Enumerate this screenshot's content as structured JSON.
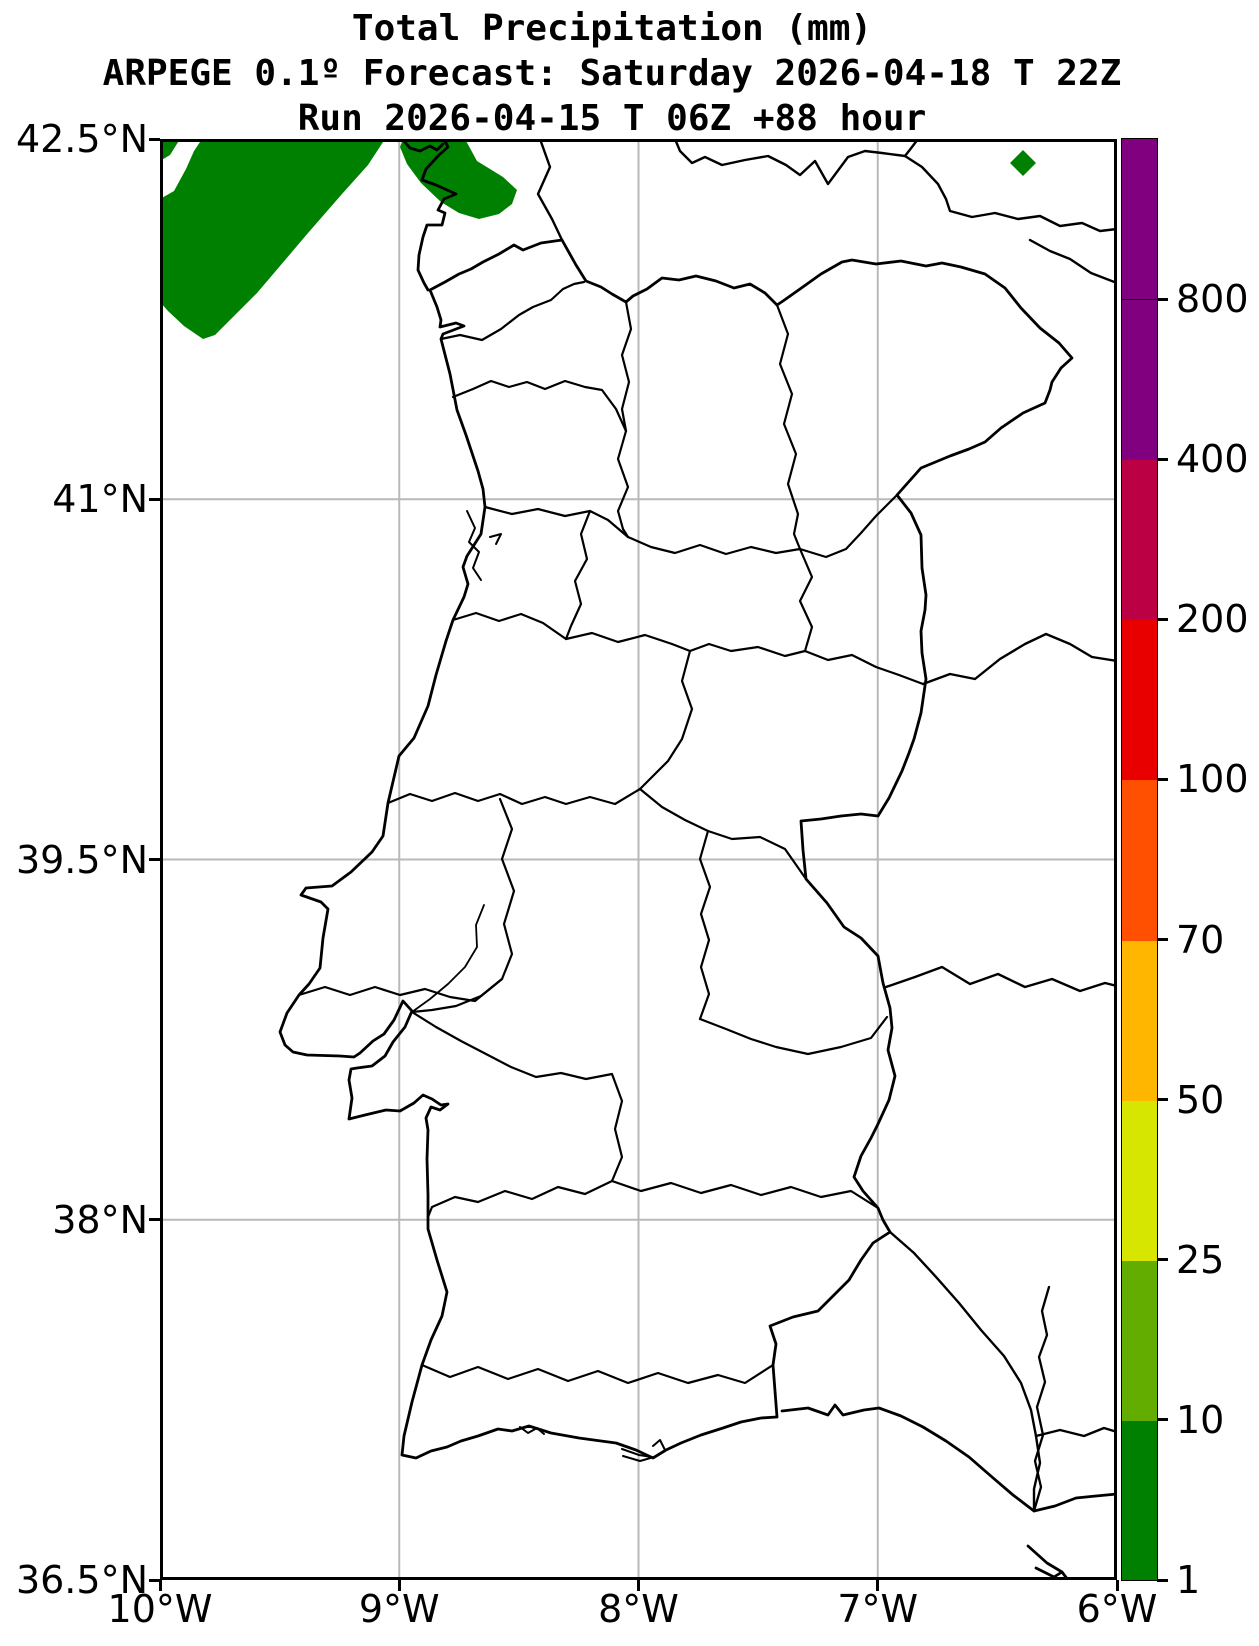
{
  "title": {
    "line1": "Total Precipitation (mm)",
    "line2": "ARPEGE 0.1º Forecast: Saturday 2026-04-18 T 22Z",
    "line3": "Run 2026-04-15 T 06Z +88 hour"
  },
  "axes": {
    "lat_ticks": [
      {
        "label": "42.5°N",
        "value": 42.5
      },
      {
        "label": "41°N",
        "value": 41
      },
      {
        "label": "39.5°N",
        "value": 39.5
      },
      {
        "label": "38°N",
        "value": 38
      },
      {
        "label": "36.5°N",
        "value": 36.5
      }
    ],
    "lon_ticks": [
      {
        "label": "10°W",
        "value": -10
      },
      {
        "label": "9°W",
        "value": -9
      },
      {
        "label": "8°W",
        "value": -8
      },
      {
        "label": "7°W",
        "value": -7
      },
      {
        "label": "6°W",
        "value": -6
      }
    ]
  },
  "colorbar": {
    "unit": "mm",
    "boundary_labels": [
      "1",
      "10",
      "25",
      "50",
      "70",
      "100",
      "200",
      "400",
      "800"
    ],
    "boundary_values": [
      1,
      10,
      25,
      50,
      70,
      100,
      200,
      400,
      800
    ],
    "segment_colors": [
      "#008000",
      "#62ad00",
      "#d6e600",
      "#ffb600",
      "#ff4f00",
      "#e80000",
      "#bb0044",
      "#800080",
      "#800080"
    ]
  },
  "chart_data": {
    "type": "map",
    "title": "Total Precipitation (mm)",
    "model": "ARPEGE 0.1º",
    "forecast_valid": "Saturday 2026-04-18 T 22Z",
    "run": "2026-04-15 T 06Z",
    "lead_hours": 88,
    "lon_range_deg": [
      -10,
      -6
    ],
    "lat_range_deg": [
      36.5,
      42.5
    ],
    "grid": true,
    "xlabel_ticks": [
      "10°W",
      "9°W",
      "8°W",
      "7°W",
      "6°W"
    ],
    "ylabel_ticks": [
      "42.5°N",
      "41°N",
      "39.5°N",
      "38°N",
      "36.5°N"
    ],
    "colorbar_levels_mm": [
      1,
      10,
      25,
      50,
      70,
      100,
      200,
      400,
      800
    ],
    "colorbar_colors": [
      "#008000",
      "#62ad00",
      "#d6e600",
      "#ffb600",
      "#ff4f00",
      "#e80000",
      "#bb0044",
      "#800080"
    ],
    "precipitation_areas": [
      {
        "area": "Atlantic NW corner and Rías Baixas / Minho coast (about 9-10°W, 41.9-42.5°N)",
        "value_mm": "1-10",
        "color": "#008000"
      },
      {
        "area": "small isolated cell near 6.4°W, 42.4°N",
        "value_mm": "1-10",
        "color": "#008000"
      },
      {
        "area": "remainder of Portugal / western Spain domain",
        "value_mm": "< 1 (no shading)"
      }
    ],
    "map_layers": [
      "coastline",
      "Portugal-Spain border",
      "Portuguese district boundaries",
      "Spanish province boundaries"
    ]
  }
}
